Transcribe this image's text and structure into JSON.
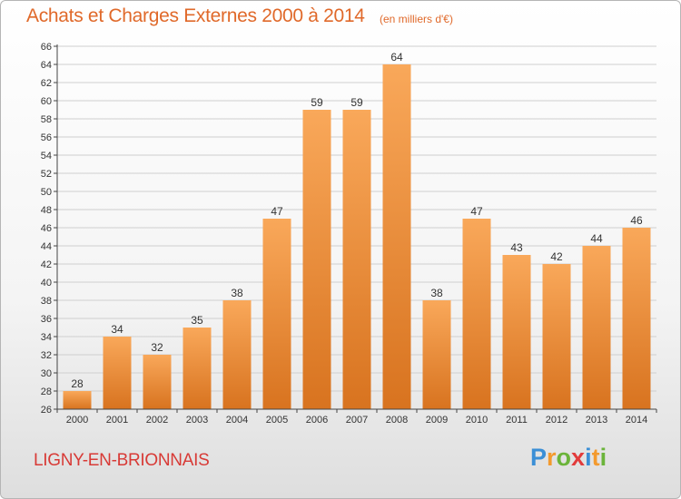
{
  "header": {
    "title": "Achats et Charges Externes 2000 à 2014",
    "subtitle": "(en milliers d'€)"
  },
  "footer": {
    "town": "LIGNY-EN-BRIONNAIS",
    "logo_letters": [
      {
        "char": "P",
        "color": "#3b8fd6"
      },
      {
        "char": "r",
        "color": "#f39a2e"
      },
      {
        "char": "o",
        "color": "#6bb43a"
      },
      {
        "char": "x",
        "color": "#e23b3b"
      },
      {
        "char": "i",
        "color": "#3b8fd6"
      },
      {
        "char": "t",
        "color": "#f39a2e"
      },
      {
        "char": "i",
        "color": "#6bb43a"
      }
    ]
  },
  "colors": {
    "bar_top": "#f9a85a",
    "bar_bottom": "#d8731f",
    "grid": "#cfcfcf",
    "axis": "#444444"
  },
  "chart_data": {
    "type": "bar",
    "categories": [
      "2000",
      "2001",
      "2002",
      "2003",
      "2004",
      "2005",
      "2006",
      "2007",
      "2008",
      "2009",
      "2010",
      "2011",
      "2012",
      "2013",
      "2014"
    ],
    "values": [
      28,
      34,
      32,
      35,
      38,
      47,
      59,
      59,
      64,
      38,
      47,
      43,
      42,
      44,
      46
    ],
    "ylim": [
      26,
      66
    ],
    "ytick_step": 2,
    "grid": true,
    "data_labels": true,
    "title": "Achats et Charges Externes 2000 à 2014",
    "subtitle": "(en milliers d'€)"
  }
}
